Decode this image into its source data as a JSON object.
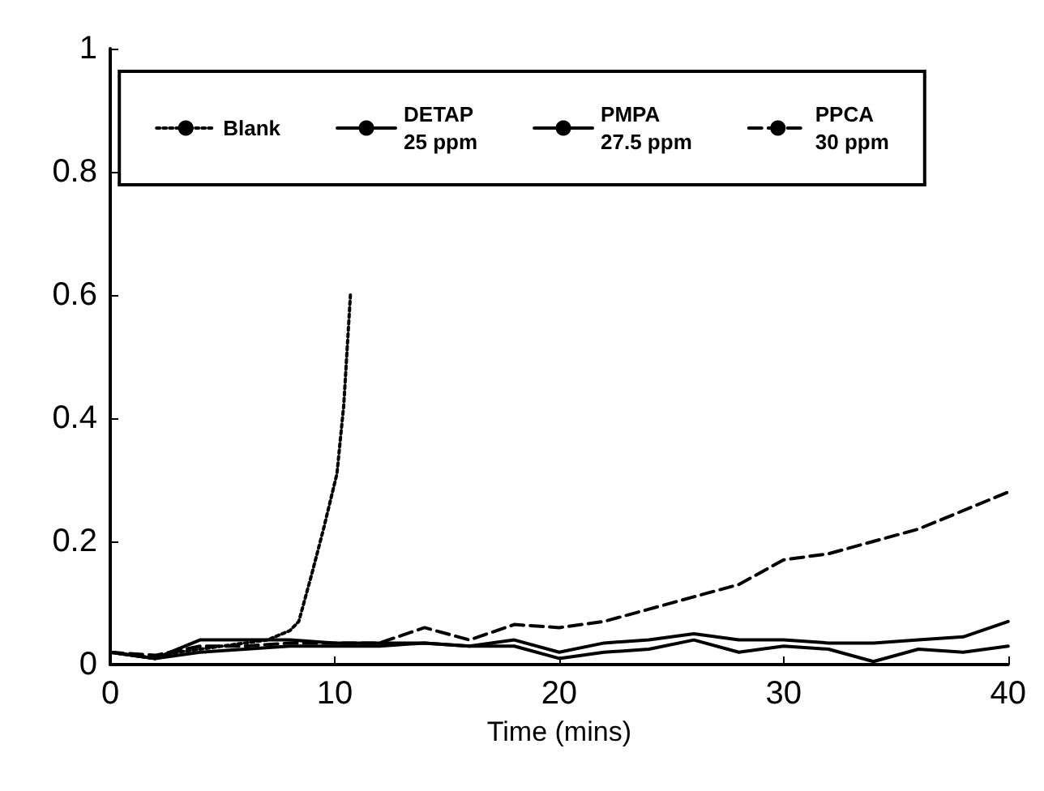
{
  "chart_data": {
    "type": "line",
    "xlabel": "Time (mins)",
    "xlim": [
      0,
      40
    ],
    "xticks": [
      0,
      10,
      20,
      30,
      40
    ],
    "ylim": [
      0,
      1
    ],
    "yticks": [
      0,
      0.2,
      0.4,
      0.6,
      0.8,
      1
    ],
    "grid": false,
    "legend": "top",
    "marker": "none",
    "series": [
      {
        "name": "Blank",
        "color": "#000000",
        "line_style": "dotted",
        "x": [
          0,
          1,
          2,
          3,
          4,
          5,
          6,
          7,
          8,
          8.4,
          9,
          9.5,
          10.1,
          10.4,
          10.7
        ],
        "values": [
          0.02,
          0.015,
          0.01,
          0.02,
          0.025,
          0.03,
          0.035,
          0.04,
          0.055,
          0.07,
          0.15,
          0.22,
          0.31,
          0.42,
          0.6
        ]
      },
      {
        "name": "DETAP\n25 ppm",
        "color": "#000000",
        "line_style": "solid",
        "x": [
          0,
          2,
          4,
          6,
          8,
          10,
          12,
          14,
          16,
          18,
          20,
          22,
          24,
          26,
          28,
          30,
          32,
          34,
          36,
          38,
          40
        ],
        "values": [
          0.02,
          0.01,
          0.02,
          0.025,
          0.03,
          0.03,
          0.03,
          0.035,
          0.03,
          0.03,
          0.01,
          0.02,
          0.025,
          0.04,
          0.02,
          0.03,
          0.025,
          0.005,
          0.025,
          0.02,
          0.03
        ]
      },
      {
        "name": "PMPA\n27.5 ppm",
        "color": "#000000",
        "line_style": "solid",
        "x": [
          0,
          2,
          4,
          6,
          8,
          10,
          12,
          14,
          16,
          18,
          20,
          22,
          24,
          26,
          28,
          30,
          32,
          34,
          36,
          38,
          40
        ],
        "values": [
          0.02,
          0.01,
          0.04,
          0.04,
          0.04,
          0.035,
          0.035,
          0.035,
          0.03,
          0.04,
          0.02,
          0.035,
          0.04,
          0.05,
          0.04,
          0.04,
          0.035,
          0.035,
          0.04,
          0.045,
          0.07
        ]
      },
      {
        "name": "PPCA\n30 ppm",
        "color": "#000000",
        "line_style": "dashed",
        "x": [
          0,
          2,
          4,
          6,
          8,
          10,
          12,
          14,
          16,
          18,
          20,
          22,
          24,
          26,
          28,
          30,
          32,
          34,
          36,
          38,
          40
        ],
        "values": [
          0.02,
          0.015,
          0.03,
          0.03,
          0.035,
          0.035,
          0.035,
          0.06,
          0.04,
          0.065,
          0.06,
          0.07,
          0.09,
          0.11,
          0.13,
          0.17,
          0.18,
          0.2,
          0.22,
          0.25,
          0.28
        ]
      }
    ]
  }
}
